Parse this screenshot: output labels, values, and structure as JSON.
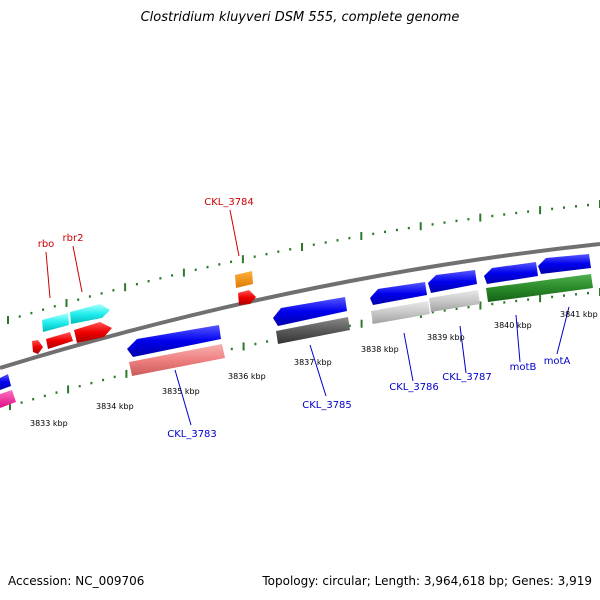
{
  "title": "Clostridium kluyveri DSM 555, complete genome",
  "accession": "Accession: NC_009706",
  "stats": "Topology: circular; Length: 3,964,618 bp; Genes: 3,919",
  "colors": {
    "backbone": "#808080",
    "tick": "#2a7a2a",
    "forward_label": "#cc0000",
    "reverse_label": "#0000cc"
  },
  "kbp_labels": [
    "3833 kbp",
    "3834 kbp",
    "3835 kbp",
    "3836 kbp",
    "3837 kbp",
    "3838 kbp",
    "3839 kbp",
    "3840 kbp",
    "3841 kbp"
  ],
  "genes": [
    {
      "id": "rbo",
      "label": "rbo",
      "strand": "forward"
    },
    {
      "id": "rbr2",
      "label": "rbr2",
      "strand": "forward"
    },
    {
      "id": "CKL_3784",
      "label": "CKL_3784",
      "strand": "forward"
    },
    {
      "id": "CKL_3783",
      "label": "CKL_3783",
      "strand": "reverse"
    },
    {
      "id": "CKL_3785",
      "label": "CKL_3785",
      "strand": "reverse"
    },
    {
      "id": "CKL_3786",
      "label": "CKL_3786",
      "strand": "reverse"
    },
    {
      "id": "CKL_3787",
      "label": "CKL_3787",
      "strand": "reverse"
    },
    {
      "id": "motB",
      "label": "motB",
      "strand": "reverse"
    },
    {
      "id": "motA",
      "label": "motA",
      "strand": "reverse"
    }
  ]
}
